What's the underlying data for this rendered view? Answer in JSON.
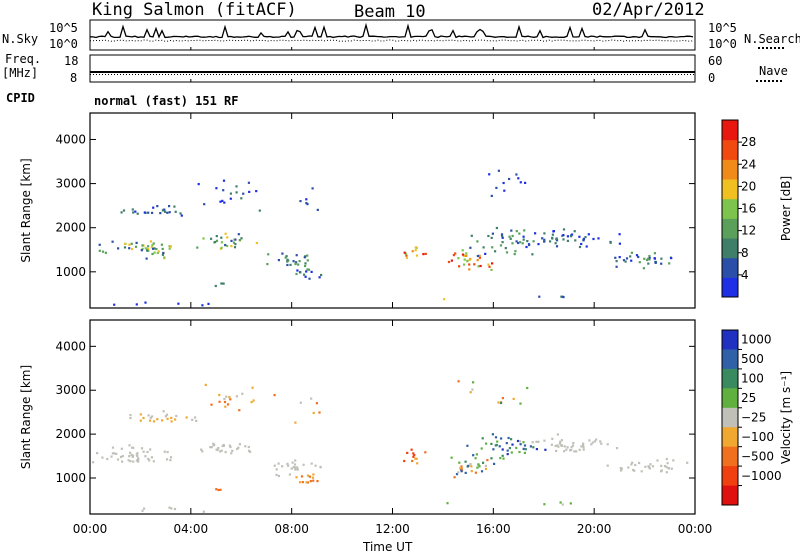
{
  "header": {
    "station": "King Salmon (fitACF)",
    "beam": "Beam 10",
    "date": "02/Apr/2012"
  },
  "aux_panels": {
    "nsky_label": "N.Sky",
    "nsearch_label": "N.Search",
    "noise_ticks_left": [
      "10^5",
      "10^0"
    ],
    "noise_ticks_right": [
      "10^5",
      "10^0"
    ],
    "freq_label": "Freq.",
    "freq_unit": "[MHz]",
    "freq_ticks": [
      "18",
      "8"
    ],
    "nave_label": "Nave",
    "nave_ticks": [
      "60",
      "0"
    ],
    "cpid_label": "CPID",
    "cpid_text": "normal (fast) 151 RF"
  },
  "colors": {
    "power": [
      "#1f2fe6",
      "#2b4fa8",
      "#3f7f6a",
      "#5aa05a",
      "#7dc34c",
      "#f0c020",
      "#f08a18",
      "#f04a10",
      "#e81810"
    ],
    "velocity": [
      "#2030c0",
      "#3060a8",
      "#3a8a60",
      "#60b040",
      "#c0c0b8",
      "#f0a830",
      "#f07020",
      "#f04010",
      "#e01010"
    ],
    "axis": "#000000"
  },
  "chart_data": [
    {
      "type": "heatmap",
      "name": "power",
      "xlabel": "Time UT",
      "ylabel": "Slant Range [km]",
      "x_ticks": [
        "00:00",
        "04:00",
        "08:00",
        "12:00",
        "16:00",
        "20:00",
        "00:00"
      ],
      "xlim": [
        0,
        24
      ],
      "ylim": [
        180,
        4600
      ],
      "y_ticks": [
        1000,
        2000,
        3000,
        4000
      ],
      "colorbar": {
        "label": "Power [dB]",
        "ticks": [
          4,
          8,
          12,
          16,
          20,
          24,
          28
        ],
        "range": [
          0,
          32
        ]
      }
    },
    {
      "type": "heatmap",
      "name": "velocity",
      "xlabel": "Time UT",
      "ylabel": "Slant Range [km]",
      "x_ticks": [
        "00:00",
        "04:00",
        "08:00",
        "12:00",
        "16:00",
        "20:00",
        "00:00"
      ],
      "xlim": [
        0,
        24
      ],
      "ylim": [
        180,
        4600
      ],
      "y_ticks": [
        1000,
        2000,
        3000,
        4000
      ],
      "colorbar": {
        "label": "Velocity [m s⁻¹]",
        "ticks": [
          "1000",
          "500",
          "100",
          "25",
          "−25",
          "−100",
          "−500",
          "−1000"
        ]
      }
    }
  ],
  "x_axis_label": "Time UT"
}
